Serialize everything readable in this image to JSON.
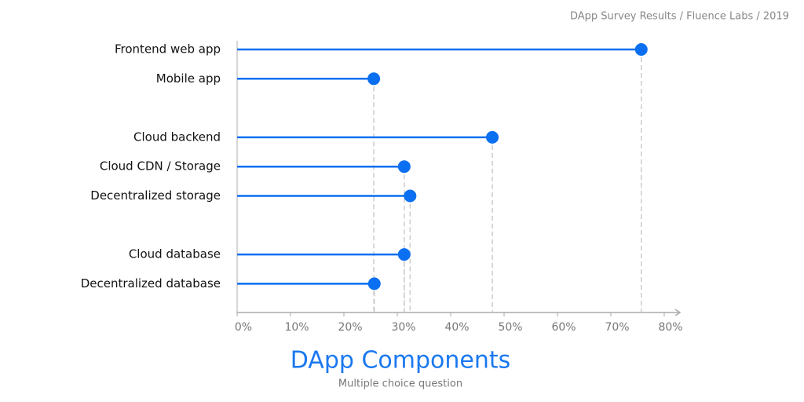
{
  "source": "DApp Survey Results / Fluence Labs / 2019",
  "chart_data": {
    "type": "lollipop",
    "title": "DApp Components",
    "subtitle": "Multiple choice question",
    "categories": [
      "Frontend web app",
      "Mobile app",
      null,
      "Cloud backend",
      "Cloud CDN / Storage",
      "Decentralized storage",
      null,
      "Cloud database",
      "Decentralized database"
    ],
    "values": [
      75.7,
      25.6,
      null,
      47.8,
      31.3,
      32.4,
      null,
      31.3,
      25.7
    ],
    "color": "#0a6ff0",
    "xlim": [
      0,
      80
    ],
    "xticks": [
      {
        "value": 0,
        "label": "0%"
      },
      {
        "value": 10,
        "label": "10%"
      },
      {
        "value": 20,
        "label": "20%"
      },
      {
        "value": 30,
        "label": "30%"
      },
      {
        "value": 40,
        "label": "40%"
      },
      {
        "value": 50,
        "label": "50%"
      },
      {
        "value": 60,
        "label": "60%"
      },
      {
        "value": 70,
        "label": "70%"
      },
      {
        "value": 80,
        "label": "80%"
      }
    ]
  }
}
